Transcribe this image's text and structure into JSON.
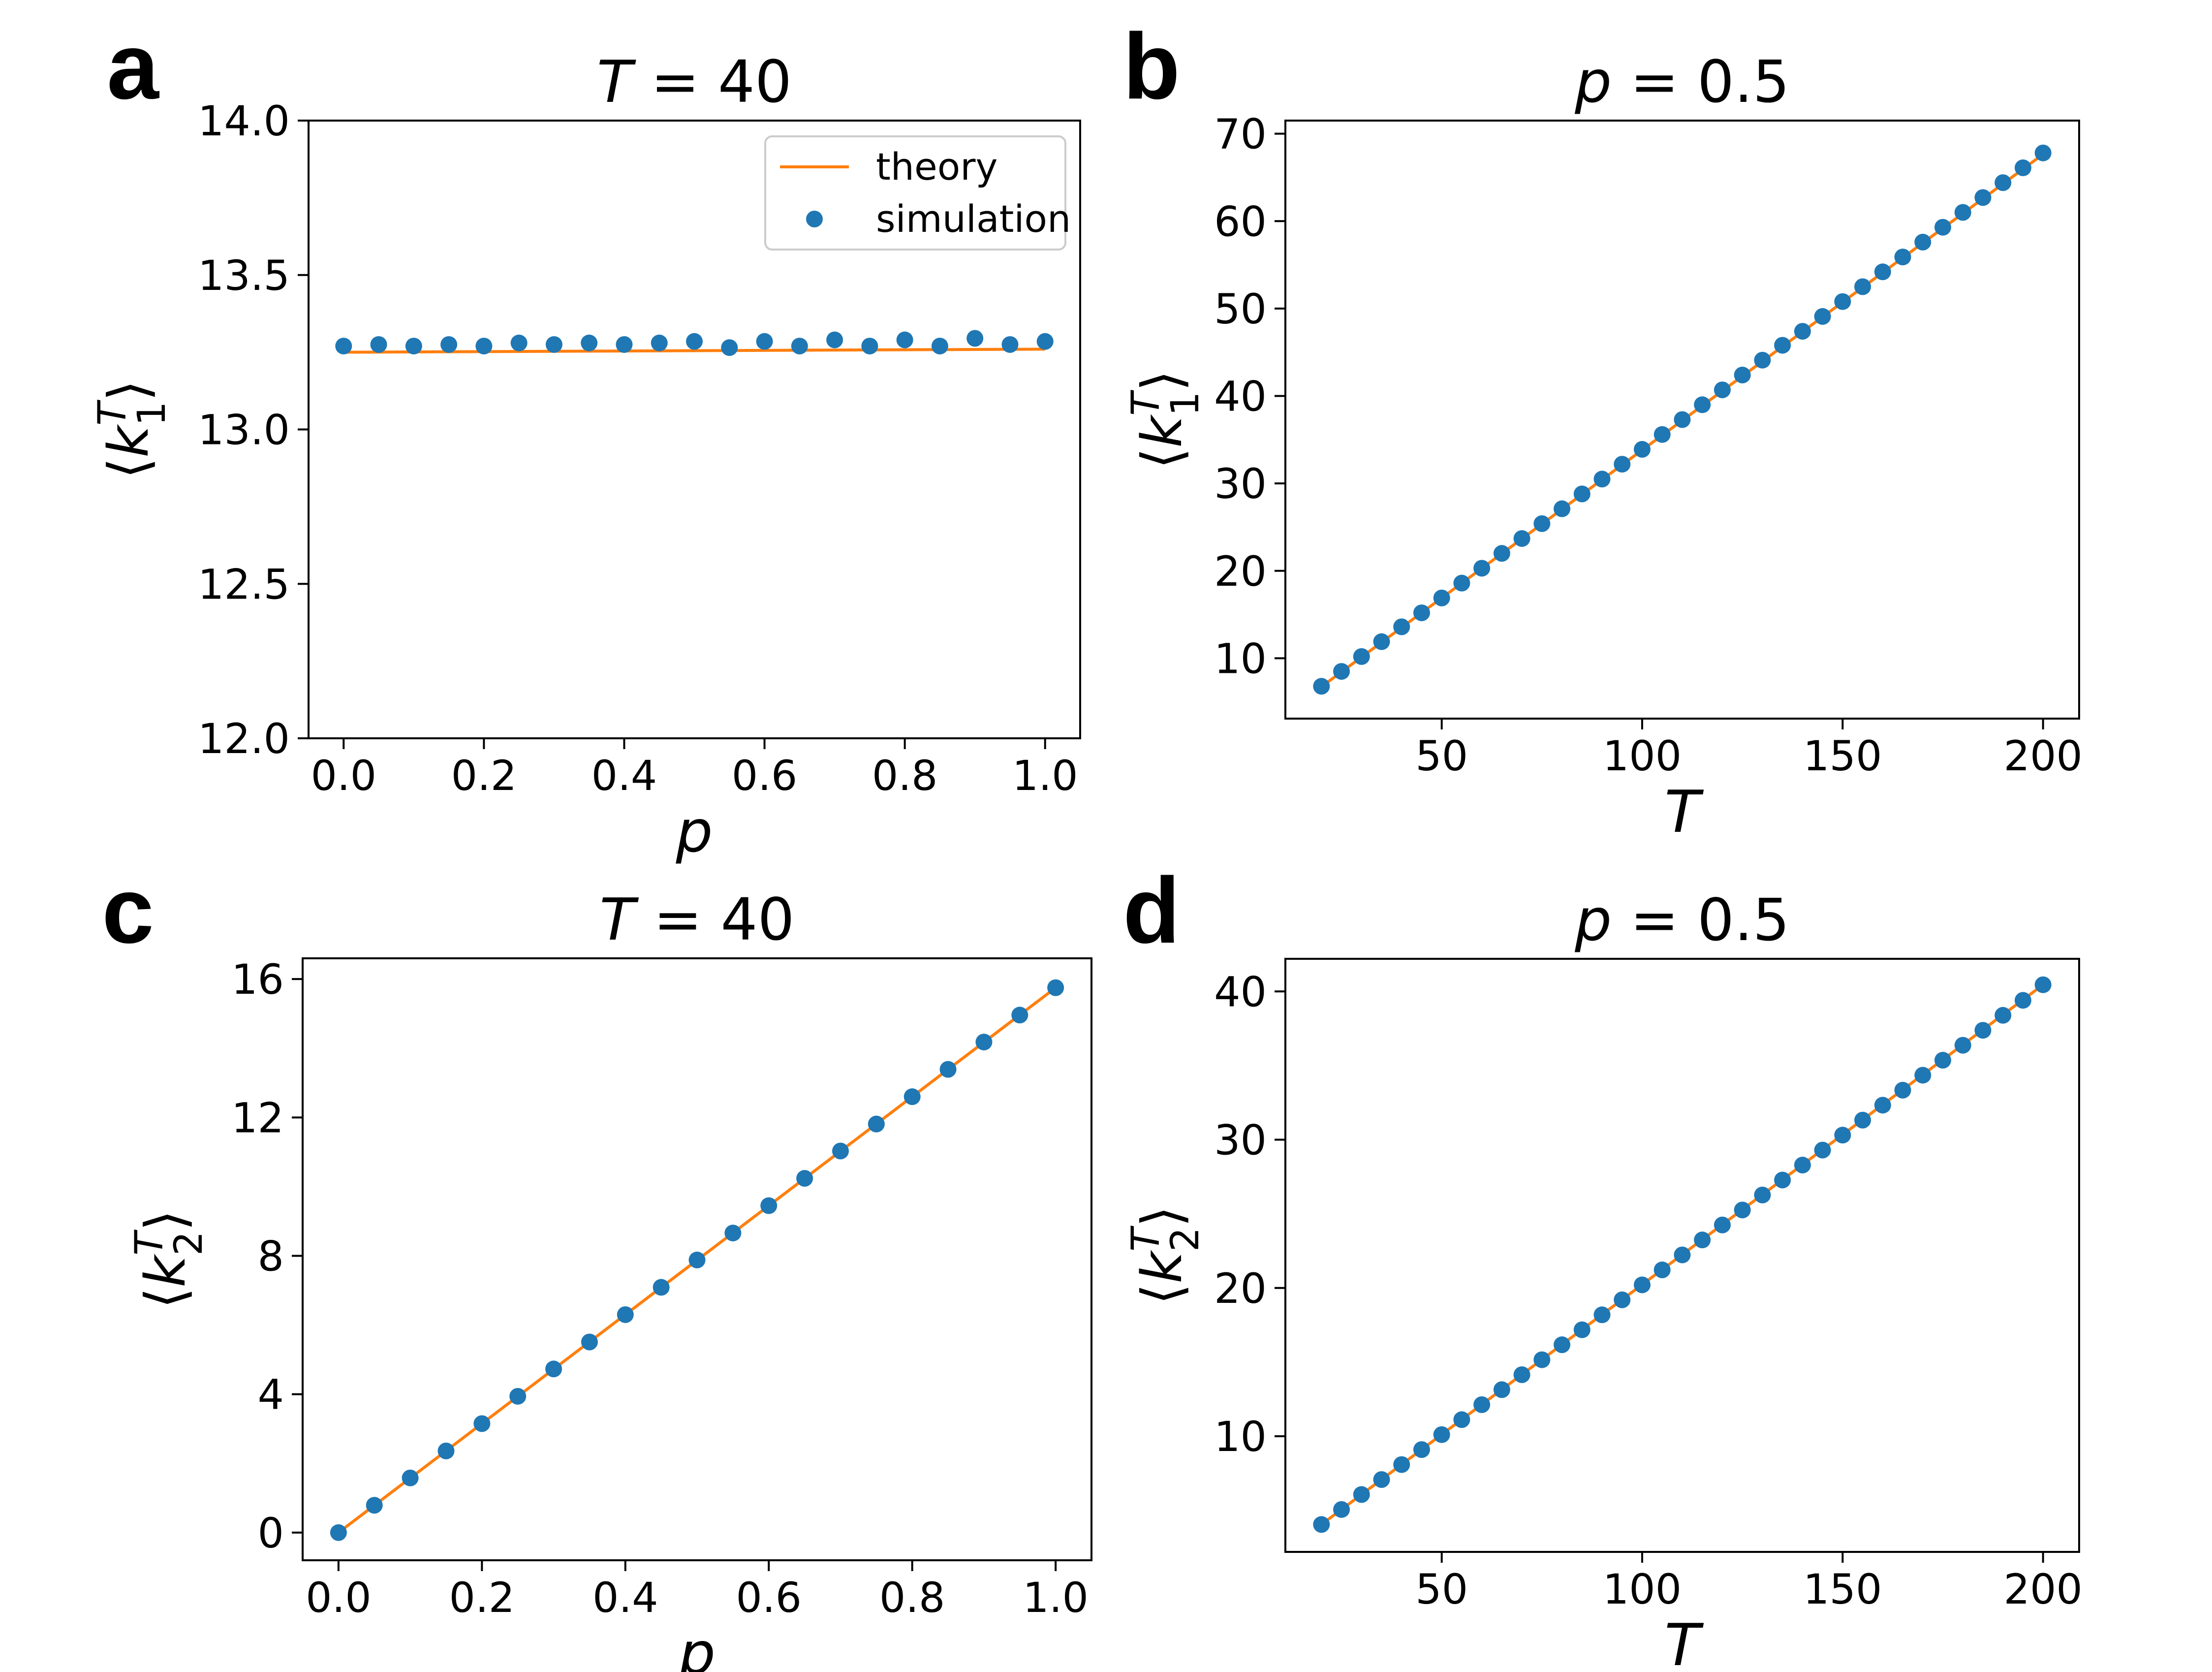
{
  "figure": {
    "panels": [
      "a",
      "b",
      "c",
      "d"
    ]
  },
  "colors": {
    "theory": "#ff7f0e",
    "simulation": "#1f77b4",
    "axis": "#000000"
  },
  "chart_data": [
    {
      "id": "a",
      "label": "a",
      "type": "scatter",
      "title": "T = 40",
      "xlabel": "p",
      "ylabel": "⟨k1T⟩",
      "ylabel_parts": {
        "base": "k",
        "sub": "1",
        "sup": "T"
      },
      "xlim": [
        -0.05,
        1.05
      ],
      "ylim": [
        12.0,
        14.0
      ],
      "xticks": [
        0.0,
        0.2,
        0.4,
        0.6,
        0.8,
        1.0
      ],
      "xtick_labels": [
        "0.0",
        "0.2",
        "0.4",
        "0.6",
        "0.8",
        "1.0"
      ],
      "yticks": [
        12.0,
        12.5,
        13.0,
        13.5,
        14.0
      ],
      "ytick_labels": [
        "12.0",
        "12.5",
        "13.0",
        "13.5",
        "14.0"
      ],
      "legend": {
        "position": "top-right",
        "entries": [
          "theory",
          "simulation"
        ]
      },
      "series": [
        {
          "name": "theory",
          "kind": "line",
          "x": [
            0.0,
            1.0
          ],
          "y": [
            13.25,
            13.26
          ]
        },
        {
          "name": "simulation",
          "kind": "scatter",
          "x": [
            0.0,
            0.05,
            0.1,
            0.15,
            0.2,
            0.25,
            0.3,
            0.35,
            0.4,
            0.45,
            0.5,
            0.55,
            0.6,
            0.65,
            0.7,
            0.75,
            0.8,
            0.85,
            0.9,
            0.95,
            1.0
          ],
          "y": [
            13.27,
            13.275,
            13.27,
            13.275,
            13.27,
            13.28,
            13.275,
            13.28,
            13.275,
            13.28,
            13.285,
            13.265,
            13.285,
            13.27,
            13.29,
            13.27,
            13.29,
            13.27,
            13.295,
            13.275,
            13.285
          ]
        }
      ]
    },
    {
      "id": "b",
      "label": "b",
      "type": "scatter",
      "title": "p = 0.5",
      "xlabel": "T",
      "ylabel": "⟨k1T⟩",
      "ylabel_parts": {
        "base": "k",
        "sub": "1",
        "sup": "T"
      },
      "xlim": [
        11,
        209
      ],
      "ylim": [
        3.1,
        71.5
      ],
      "xticks": [
        50,
        100,
        150,
        200
      ],
      "xtick_labels": [
        "50",
        "100",
        "150",
        "200"
      ],
      "yticks": [
        10,
        20,
        30,
        40,
        50,
        60,
        70
      ],
      "ytick_labels": [
        "10",
        "20",
        "30",
        "40",
        "50",
        "60",
        "70"
      ],
      "series": [
        {
          "name": "theory",
          "kind": "line",
          "x": [
            20,
            200
          ],
          "y": [
            6.75,
            67.65
          ]
        },
        {
          "name": "simulation",
          "kind": "scatter",
          "x": [
            20,
            25,
            30,
            35,
            40,
            45,
            50,
            55,
            60,
            65,
            70,
            75,
            80,
            85,
            90,
            95,
            100,
            105,
            110,
            115,
            120,
            125,
            130,
            135,
            140,
            145,
            150,
            155,
            160,
            165,
            170,
            175,
            180,
            185,
            190,
            195,
            200
          ],
          "y": [
            6.8,
            8.5,
            10.2,
            11.9,
            13.6,
            15.2,
            16.9,
            18.6,
            20.3,
            22.0,
            23.7,
            25.4,
            27.1,
            28.8,
            30.5,
            32.2,
            33.9,
            35.6,
            37.3,
            39.0,
            40.7,
            42.4,
            44.1,
            45.8,
            47.4,
            49.1,
            50.8,
            52.5,
            54.2,
            55.9,
            57.6,
            59.3,
            61.0,
            62.7,
            64.4,
            66.1,
            67.8
          ]
        }
      ]
    },
    {
      "id": "c",
      "label": "c",
      "type": "scatter",
      "title": "T = 40",
      "xlabel": "p",
      "ylabel": "⟨k2T⟩",
      "ylabel_parts": {
        "base": "k",
        "sub": "2",
        "sup": "T"
      },
      "xlim": [
        -0.05,
        1.05
      ],
      "ylim": [
        -0.8,
        16.6
      ],
      "xticks": [
        0.0,
        0.2,
        0.4,
        0.6,
        0.8,
        1.0
      ],
      "xtick_labels": [
        "0.0",
        "0.2",
        "0.4",
        "0.6",
        "0.8",
        "1.0"
      ],
      "yticks": [
        0,
        4,
        8,
        12,
        16
      ],
      "ytick_labels": [
        "0",
        "4",
        "8",
        "12",
        "16"
      ],
      "series": [
        {
          "name": "theory",
          "kind": "line",
          "x": [
            0.0,
            1.0
          ],
          "y": [
            0.0,
            15.75
          ]
        },
        {
          "name": "simulation",
          "kind": "scatter",
          "x": [
            0.0,
            0.05,
            0.1,
            0.15,
            0.2,
            0.25,
            0.3,
            0.35,
            0.4,
            0.45,
            0.5,
            0.55,
            0.6,
            0.65,
            0.7,
            0.75,
            0.8,
            0.85,
            0.9,
            0.95,
            1.0
          ],
          "y": [
            0.0,
            0.79,
            1.58,
            2.36,
            3.15,
            3.94,
            4.73,
            5.51,
            6.3,
            7.09,
            7.88,
            8.66,
            9.45,
            10.24,
            11.03,
            11.81,
            12.6,
            13.39,
            14.18,
            14.96,
            15.75
          ]
        }
      ]
    },
    {
      "id": "d",
      "label": "d",
      "type": "scatter",
      "title": "p = 0.5",
      "xlabel": "T",
      "ylabel": "⟨k2T⟩",
      "ylabel_parts": {
        "base": "k",
        "sub": "2",
        "sup": "T"
      },
      "xlim": [
        11,
        209
      ],
      "ylim": [
        2.2,
        42.2
      ],
      "xticks": [
        50,
        100,
        150,
        200
      ],
      "xtick_labels": [
        "50",
        "100",
        "150",
        "200"
      ],
      "yticks": [
        10,
        20,
        30,
        40
      ],
      "ytick_labels": [
        "10",
        "20",
        "30",
        "40"
      ],
      "series": [
        {
          "name": "theory",
          "kind": "line",
          "x": [
            20,
            200
          ],
          "y": [
            4.05,
            40.45
          ]
        },
        {
          "name": "simulation",
          "kind": "scatter",
          "x": [
            20,
            25,
            30,
            35,
            40,
            45,
            50,
            55,
            60,
            65,
            70,
            75,
            80,
            85,
            90,
            95,
            100,
            105,
            110,
            115,
            120,
            125,
            130,
            135,
            140,
            145,
            150,
            155,
            160,
            165,
            170,
            175,
            180,
            185,
            190,
            195,
            200
          ],
          "y": [
            4.05,
            5.06,
            6.07,
            7.08,
            8.09,
            9.1,
            10.11,
            11.12,
            12.13,
            13.14,
            14.15,
            15.16,
            16.17,
            17.18,
            18.19,
            19.2,
            20.21,
            21.22,
            22.23,
            23.24,
            24.25,
            25.26,
            26.27,
            27.28,
            28.29,
            29.3,
            30.31,
            31.32,
            32.33,
            33.34,
            34.35,
            35.36,
            36.37,
            37.38,
            38.39,
            39.4,
            40.45
          ]
        }
      ]
    }
  ]
}
